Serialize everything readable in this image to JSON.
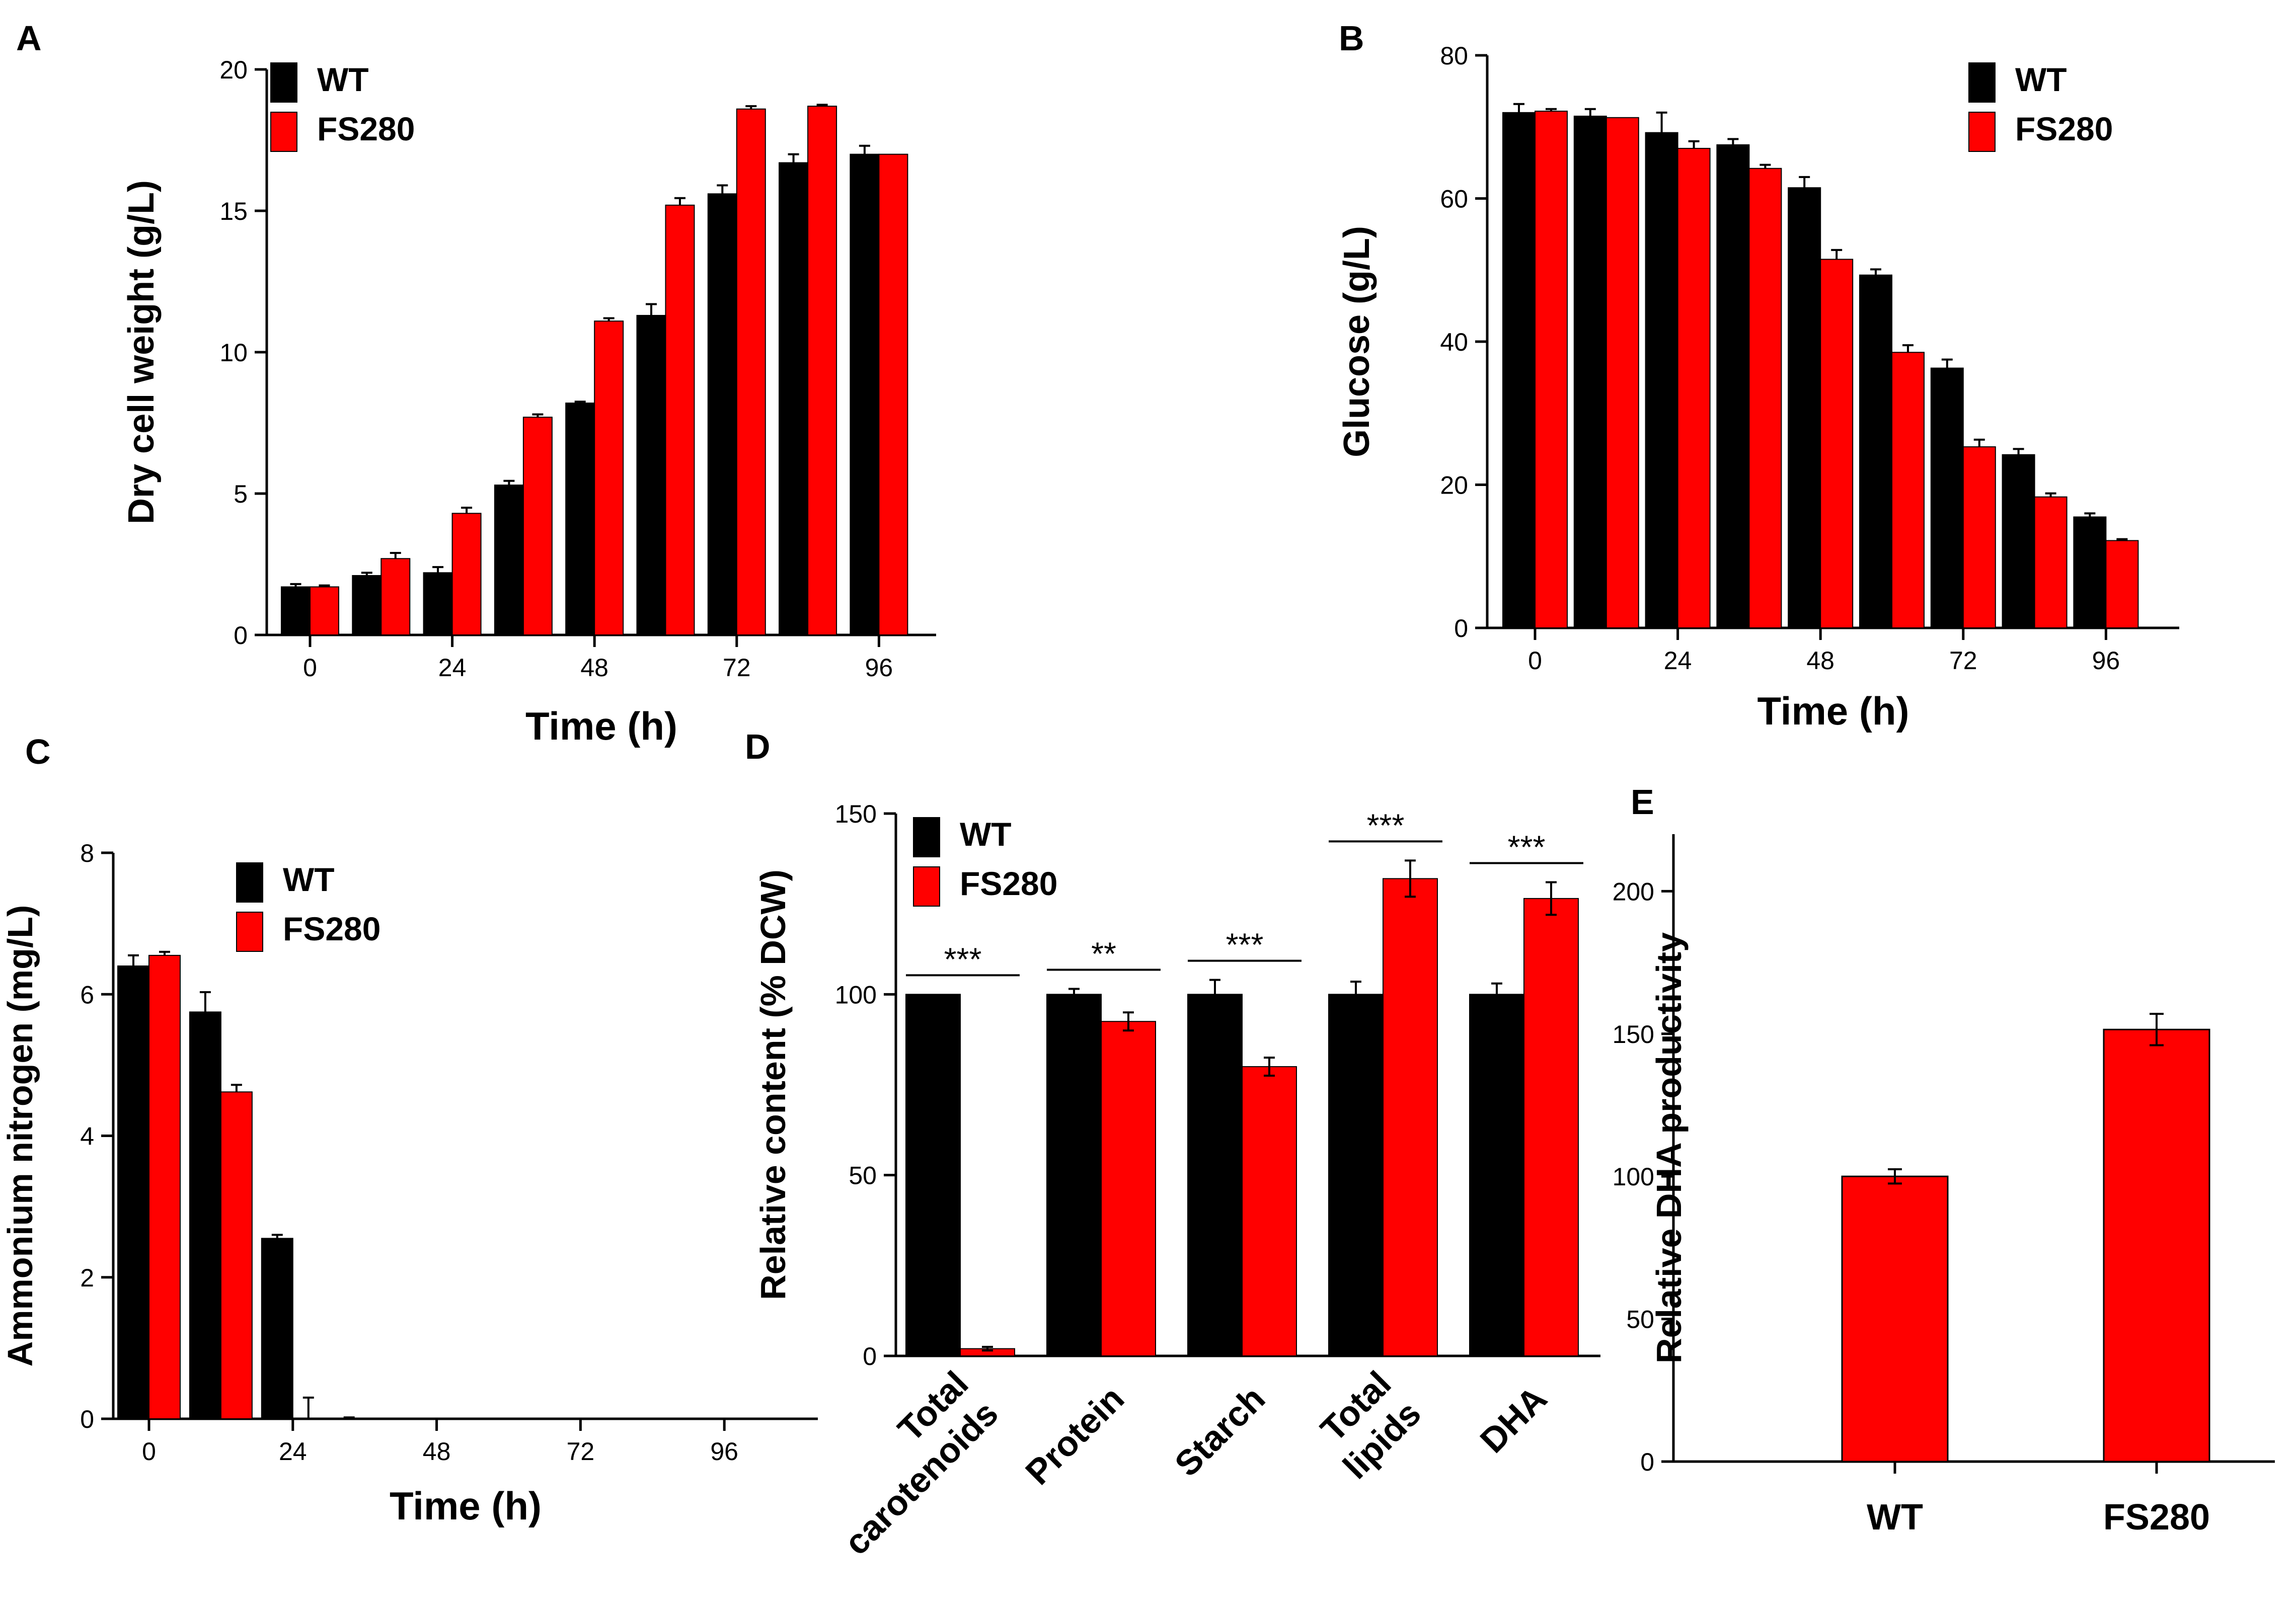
{
  "colors": {
    "wt": "#000000",
    "fs280": "#ff0000",
    "axis": "#000000"
  },
  "chart_data": [
    {
      "panel": "A",
      "type": "bar",
      "xlabel": "Time (h)",
      "ylabel": "Dry cell weight (g/L)",
      "ylim": [
        0,
        20
      ],
      "yticks": [
        "0",
        "5",
        "10",
        "15",
        "20"
      ],
      "xticks": [
        "0",
        "24",
        "48",
        "72",
        "96"
      ],
      "legend": [
        "WT",
        "FS280"
      ],
      "categories": [
        "0",
        "12",
        "24",
        "36",
        "48",
        "60",
        "72",
        "84",
        "96"
      ],
      "series": [
        {
          "name": "WT",
          "values": [
            1.7,
            2.1,
            2.2,
            5.3,
            8.2,
            11.3,
            15.6,
            16.7,
            17.0
          ],
          "errors": [
            0.1,
            0.1,
            0.2,
            0.15,
            0.05,
            0.4,
            0.3,
            0.3,
            0.3
          ]
        },
        {
          "name": "FS280",
          "values": [
            1.7,
            2.7,
            4.3,
            7.7,
            11.1,
            15.2,
            18.6,
            18.7,
            17.0
          ],
          "errors": [
            0.05,
            0.2,
            0.2,
            0.1,
            0.1,
            0.25,
            0.1,
            0.05,
            0.0
          ]
        }
      ]
    },
    {
      "panel": "B",
      "type": "bar",
      "xlabel": "Time (h)",
      "ylabel": "Glucose (g/L)",
      "ylim": [
        0,
        80
      ],
      "yticks": [
        "0",
        "20",
        "40",
        "60",
        "80"
      ],
      "xticks": [
        "0",
        "24",
        "48",
        "72",
        "96"
      ],
      "legend": [
        "WT",
        "FS280"
      ],
      "categories": [
        "0",
        "12",
        "24",
        "36",
        "48",
        "60",
        "72",
        "84",
        "96"
      ],
      "series": [
        {
          "name": "WT",
          "values": [
            72.0,
            71.5,
            69.2,
            67.5,
            61.5,
            49.3,
            36.3,
            24.2,
            15.5
          ],
          "errors": [
            1.2,
            1.0,
            2.8,
            0.8,
            1.5,
            0.8,
            1.2,
            0.8,
            0.5
          ]
        },
        {
          "name": "FS280",
          "values": [
            72.2,
            71.3,
            67.0,
            64.2,
            51.5,
            38.5,
            25.3,
            18.3,
            12.2
          ],
          "errors": [
            0.3,
            0.0,
            1.0,
            0.5,
            1.3,
            1.0,
            1.0,
            0.5,
            0.2
          ]
        }
      ]
    },
    {
      "panel": "C",
      "type": "bar",
      "xlabel": "Time (h)",
      "ylabel": "Ammonium nitrogen (mg/L)",
      "ylim": [
        0,
        8
      ],
      "yticks": [
        "0",
        "2",
        "4",
        "6",
        "8"
      ],
      "xticks": [
        "0",
        "24",
        "48",
        "72",
        "96"
      ],
      "legend": [
        "WT",
        "FS280"
      ],
      "categories": [
        "0",
        "12",
        "24",
        "36",
        "48",
        "60",
        "72",
        "84",
        "96"
      ],
      "series": [
        {
          "name": "WT",
          "values": [
            6.4,
            5.75,
            2.55,
            0,
            0,
            0,
            0,
            0,
            0
          ],
          "errors": [
            0.15,
            0.28,
            0.05,
            0.02,
            0,
            0,
            0,
            0,
            0
          ]
        },
        {
          "name": "FS280",
          "values": [
            6.55,
            4.62,
            0,
            0,
            0,
            0,
            0,
            0,
            0
          ],
          "errors": [
            0.05,
            0.1,
            0.3,
            0,
            0,
            0,
            0,
            0,
            0
          ]
        }
      ]
    },
    {
      "panel": "D",
      "type": "bar",
      "xlabel": "",
      "ylabel": "Relative content (% DCW)",
      "ylim": [
        0,
        150
      ],
      "yticks": [
        "0",
        "50",
        "100",
        "150"
      ],
      "legend": [
        "WT",
        "FS280"
      ],
      "categories": [
        [
          "Total",
          "carotenoids"
        ],
        [
          "Protein"
        ],
        [
          "Starch"
        ],
        [
          "Total",
          "lipids"
        ],
        [
          "DHA"
        ]
      ],
      "significance": [
        "***",
        "**",
        "***",
        "***",
        "***"
      ],
      "series": [
        {
          "name": "WT",
          "values": [
            100,
            100,
            100,
            100,
            100
          ],
          "errors": [
            0,
            1.5,
            4,
            3.5,
            3
          ]
        },
        {
          "name": "FS280",
          "values": [
            2,
            92.5,
            80,
            132,
            126.5
          ],
          "errors": [
            0.5,
            2.5,
            2.5,
            5,
            4.5
          ]
        }
      ]
    },
    {
      "panel": "E",
      "type": "bar",
      "xlabel": "",
      "ylabel": "Relative DHA productivity",
      "ylim": [
        0,
        220
      ],
      "yticks": [
        "0",
        "50",
        "100",
        "150",
        "200"
      ],
      "categories": [
        "WT",
        "FS280"
      ],
      "series": [
        {
          "name": "Relative DHA productivity",
          "values": [
            100,
            151.5
          ],
          "errors": [
            2.5,
            5.5
          ]
        }
      ]
    }
  ]
}
